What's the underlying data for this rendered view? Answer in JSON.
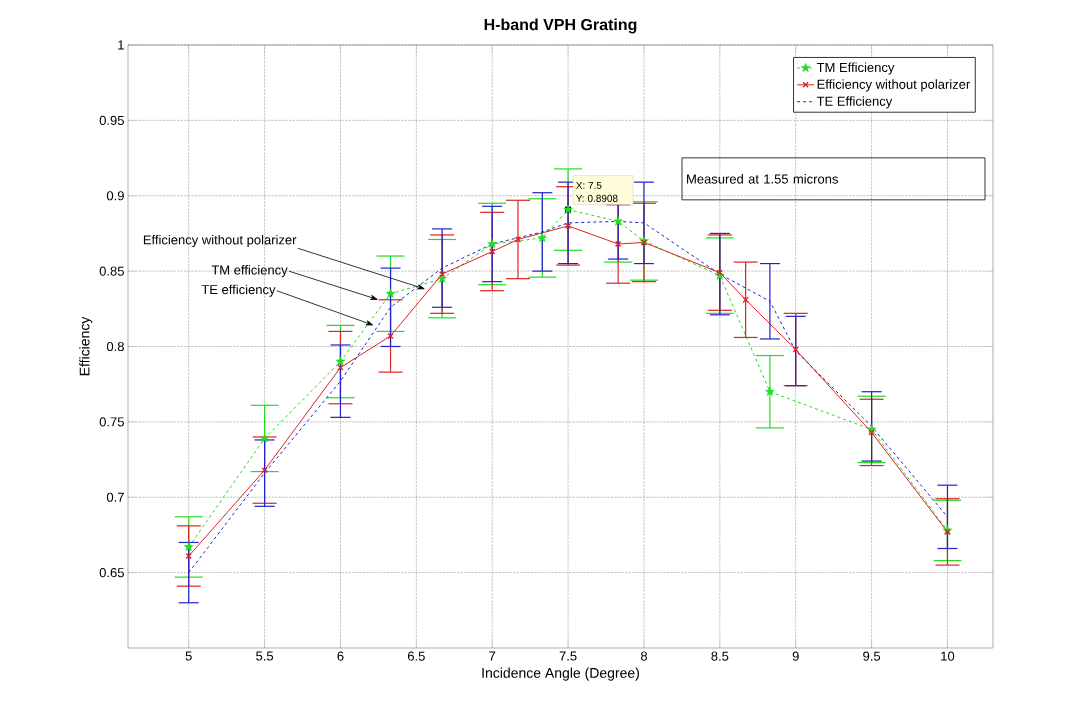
{
  "chart_data": {
    "type": "line",
    "title": "H-band VPH Grating",
    "xlabel": "Incidence Angle (Degree)",
    "ylabel": "Efficiency",
    "xlim": [
      4.6,
      10.3
    ],
    "xticks": [
      5,
      5.5,
      6,
      6.5,
      7,
      7.5,
      8,
      8.5,
      9,
      9.5,
      10
    ],
    "ylim": [
      0.6,
      1
    ],
    "yticks": [
      0.65,
      0.7,
      0.75,
      0.8,
      0.85,
      0.9,
      0.95,
      1
    ],
    "grid": true,
    "legend": "top right",
    "series": [
      {
        "name": "TM Efficiency",
        "color": "#22dd22",
        "marker": "star",
        "line_style": "dashed",
        "x": [
          5,
          5.5,
          6,
          6.33,
          6.67,
          7,
          7.33,
          7.5,
          7.83,
          8,
          8.5,
          8.83,
          9.5,
          10
        ],
        "values": [
          0.667,
          0.739,
          0.79,
          0.835,
          0.845,
          0.868,
          0.872,
          0.8908,
          0.883,
          0.87,
          0.847,
          0.77,
          0.745,
          0.678
        ],
        "errors": [
          0.02,
          0.022,
          0.024,
          0.025,
          0.026,
          0.027,
          0.026,
          0.027,
          0.027,
          0.026,
          0.025,
          0.024,
          0.022,
          0.02
        ]
      },
      {
        "name": "Efficiency without polarizer",
        "color": "#dd2222",
        "marker": "cross",
        "line_style": "solid",
        "x": [
          5,
          5.5,
          6,
          6.33,
          6.67,
          7,
          7.17,
          7.5,
          7.83,
          8,
          8.5,
          8.67,
          9,
          9.5,
          10
        ],
        "values": [
          0.661,
          0.718,
          0.786,
          0.807,
          0.848,
          0.863,
          0.871,
          0.88,
          0.868,
          0.869,
          0.849,
          0.831,
          0.798,
          0.743,
          0.677
        ],
        "errors": [
          0.02,
          0.022,
          0.024,
          0.024,
          0.026,
          0.026,
          0.026,
          0.026,
          0.026,
          0.026,
          0.025,
          0.025,
          0.024,
          0.022,
          0.022
        ]
      },
      {
        "name": "TE Efficiency",
        "color": "#2222cc",
        "marker": "none",
        "line_style": "dashed",
        "x": [
          5,
          5.5,
          6,
          6.33,
          6.67,
          7,
          7.33,
          7.5,
          7.83,
          8,
          8.5,
          8.83,
          9,
          9.5,
          10
        ],
        "values": [
          0.65,
          0.716,
          0.777,
          0.826,
          0.852,
          0.868,
          0.876,
          0.882,
          0.883,
          0.882,
          0.848,
          0.83,
          0.797,
          0.747,
          0.687
        ],
        "errors": [
          0.02,
          0.022,
          0.024,
          0.026,
          0.026,
          0.025,
          0.026,
          0.027,
          0.025,
          0.027,
          0.027,
          0.025,
          0.023,
          0.023,
          0.021
        ]
      }
    ],
    "annotations": [
      {
        "text": "Efficiency without polarizer",
        "x": 6.56,
        "y": 0.838
      },
      {
        "text": "TM efficiency",
        "x": 6.25,
        "y": 0.831
      },
      {
        "text": "TE efficiency",
        "x": 6.22,
        "y": 0.814
      },
      "X: 7.5",
      {
        "text": "Y: 0.8908",
        "x": 7.5,
        "y": 0.8908
      },
      "Measured at 1.55 microns"
    ]
  }
}
